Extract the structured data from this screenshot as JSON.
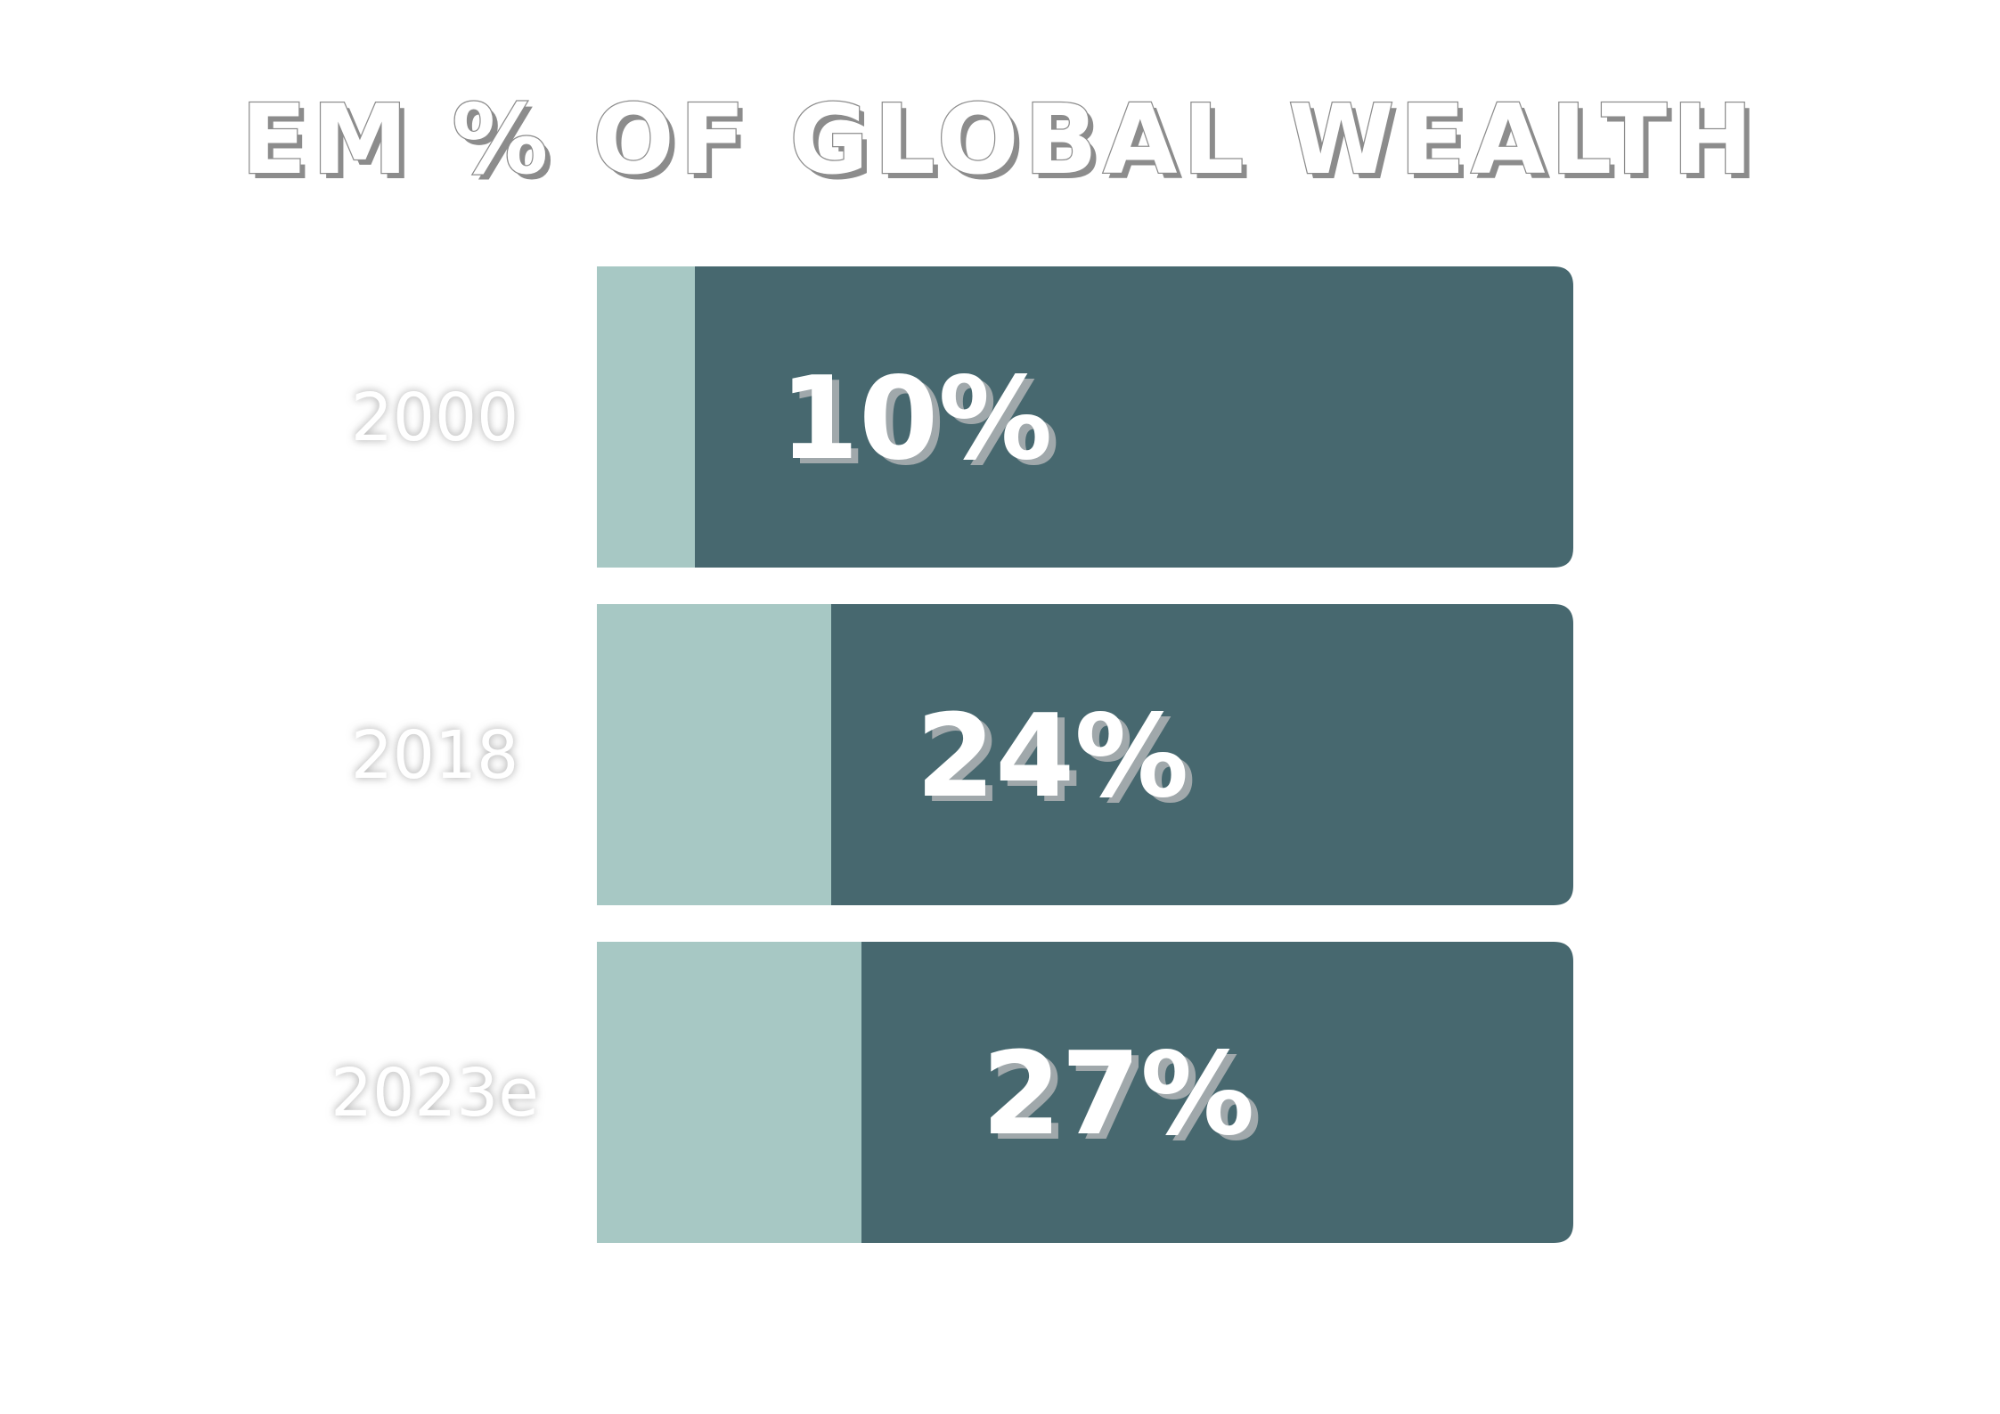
{
  "chart_data": {
    "type": "bar",
    "orientation": "horizontal",
    "title": "EM % OF GLOBAL WEALTH",
    "categories": [
      "2000",
      "2018",
      "2023e"
    ],
    "values": [
      10,
      24,
      27
    ],
    "value_labels": [
      "10%",
      "24%",
      "27%"
    ],
    "unit": "%",
    "xlim": [
      0,
      100
    ],
    "grid": false,
    "legend": "none"
  },
  "colors": {
    "fill": "#a7c8c4",
    "remainder": "#47686f",
    "label_shadow": "#a0a8ab",
    "category_glow": "#bdbdbd",
    "title_outline": "#8c8c8c"
  }
}
